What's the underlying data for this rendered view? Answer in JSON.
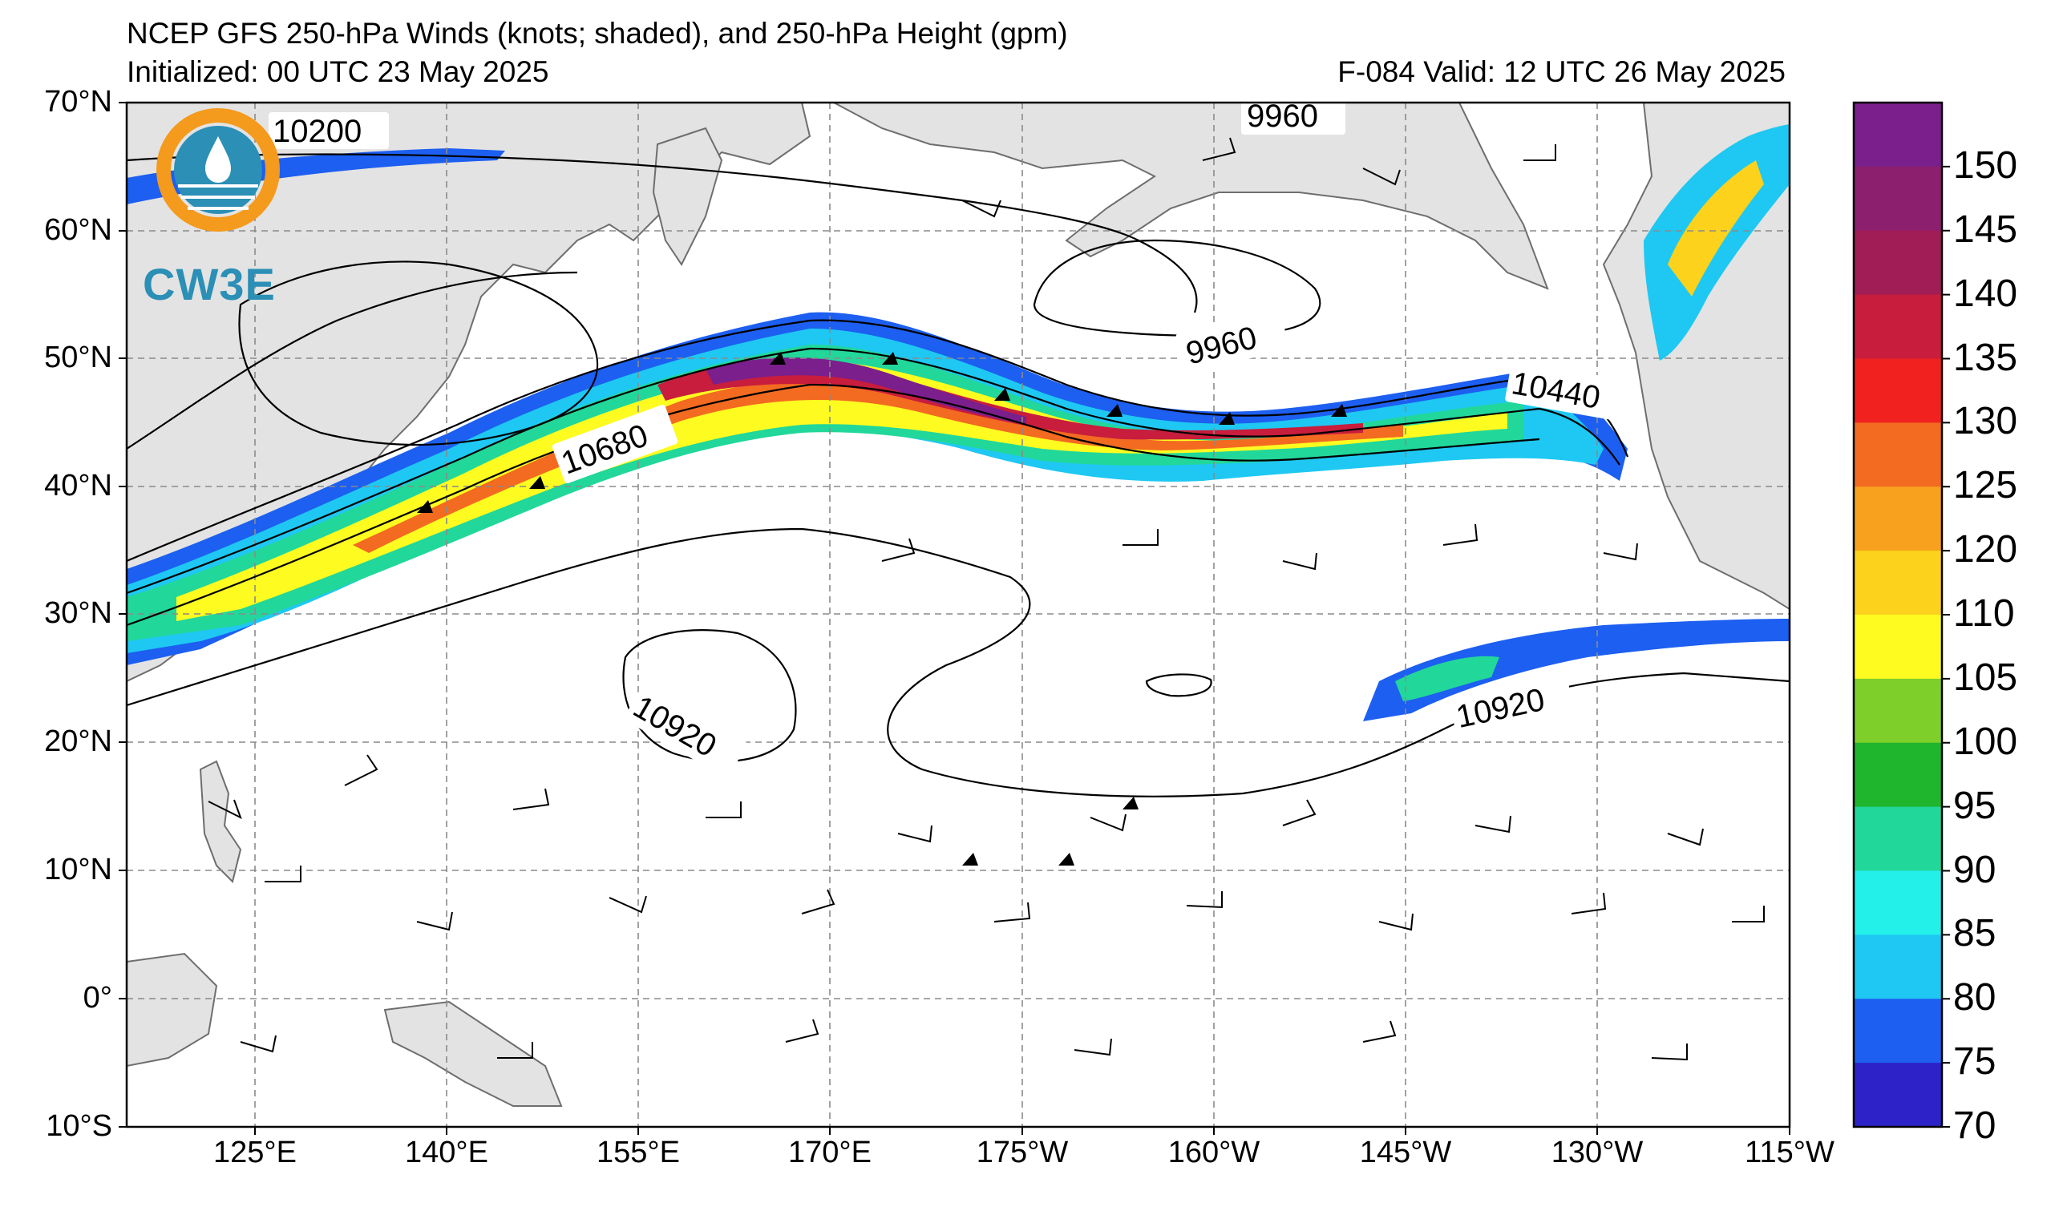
{
  "title": "NCEP GFS 250-hPa Winds (knots; shaded), and 250-hPa Height (gpm)",
  "initialized": "Initialized: 00 UTC 23 May 2025",
  "valid": "F-084  Valid: 12 UTC 26 May 2025",
  "logo": {
    "text": "CW3E"
  },
  "lat_labels": [
    "70°N",
    "60°N",
    "50°N",
    "40°N",
    "30°N",
    "20°N",
    "10°N",
    "0°",
    "10°S"
  ],
  "lon_labels": [
    "125°E",
    "140°E",
    "155°E",
    "170°E",
    "175°W",
    "160°W",
    "145°W",
    "130°W",
    "115°W"
  ],
  "colorbar": {
    "ticks": [
      "150",
      "145",
      "140",
      "135",
      "130",
      "125",
      "120",
      "110",
      "105",
      "100",
      "95",
      "90",
      "85",
      "80",
      "75",
      "70"
    ],
    "colors": [
      "#7a1f8c",
      "#8c1f6e",
      "#a11d56",
      "#c81d3c",
      "#f0211f",
      "#f36a21",
      "#f7a11e",
      "#fcd21c",
      "#fdfb20",
      "#7fcf2a",
      "#1fb52c",
      "#22d79a",
      "#22f0e9",
      "#1ec8f2",
      "#1d5ff0",
      "#2c22c8"
    ]
  },
  "contour_labels": {
    "c1": "10200",
    "c2": "9960",
    "c3": "9960",
    "c4": "10680",
    "c5": "10440",
    "c6": "10920",
    "c7": "10920"
  },
  "colors": {
    "land": "#e3e3e3",
    "coast": "#6e6e6e",
    "grid": "#8a8a8a",
    "logo_blue": "#2b8fb6",
    "logo_orange": "#f49a1d"
  }
}
